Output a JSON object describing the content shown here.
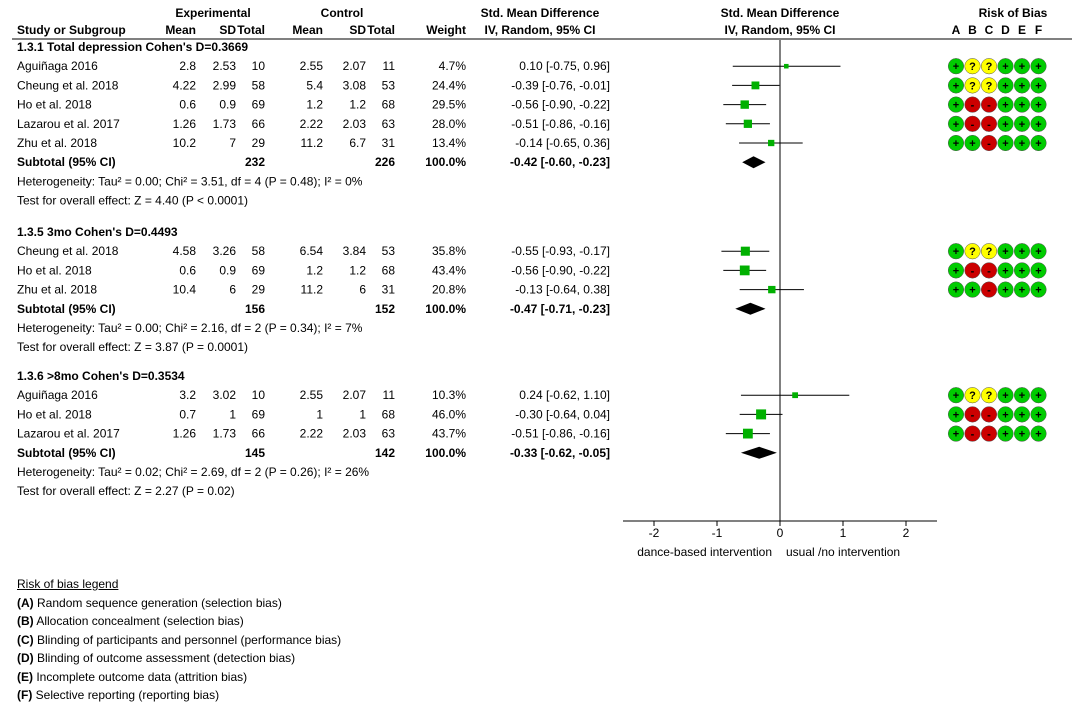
{
  "chart_data": {
    "type": "forest",
    "headers": {
      "study": "Study or Subgroup",
      "experimental": "Experimental",
      "control": "Control",
      "mean": "Mean",
      "sd": "SD",
      "total": "Total",
      "weight": "Weight",
      "smd": "Std. Mean Difference",
      "method": "IV, Random, 95% CI",
      "rob": "Risk of Bias",
      "rob_cols": [
        "A",
        "B",
        "C",
        "D",
        "E",
        "F"
      ]
    },
    "axis": {
      "min": -2,
      "max": 2,
      "ticks": [
        -2,
        -1,
        0,
        1,
        2
      ],
      "tick_labels": [
        "-2",
        "-1",
        "0",
        "1",
        "2"
      ],
      "left_label": "dance-based intervention",
      "right_label": "usual /no intervention"
    },
    "subgroups": [
      {
        "title": "1.3.1 Total depression Cohen's D=0.3669",
        "studies": [
          {
            "name": "Aguiñaga 2016",
            "e_mean": "2.8",
            "e_sd": "2.53",
            "e_total": "10",
            "c_mean": "2.55",
            "c_sd": "2.07",
            "c_total": "11",
            "weight": "4.7%",
            "ci_text": "0.10 [-0.75, 0.96]",
            "est": 0.1,
            "lo": -0.75,
            "hi": 0.96,
            "w": 4.7,
            "rob": [
              "+",
              "?",
              "?",
              "+",
              "+",
              "+"
            ]
          },
          {
            "name": "Cheung et al. 2018",
            "e_mean": "4.22",
            "e_sd": "2.99",
            "e_total": "58",
            "c_mean": "5.4",
            "c_sd": "3.08",
            "c_total": "53",
            "weight": "24.4%",
            "ci_text": "-0.39 [-0.76, -0.01]",
            "est": -0.39,
            "lo": -0.76,
            "hi": -0.01,
            "w": 24.4,
            "rob": [
              "+",
              "?",
              "?",
              "+",
              "+",
              "+"
            ]
          },
          {
            "name": "Ho et al. 2018",
            "e_mean": "0.6",
            "e_sd": "0.9",
            "e_total": "69",
            "c_mean": "1.2",
            "c_sd": "1.2",
            "c_total": "68",
            "weight": "29.5%",
            "ci_text": "-0.56 [-0.90, -0.22]",
            "est": -0.56,
            "lo": -0.9,
            "hi": -0.22,
            "w": 29.5,
            "rob": [
              "+",
              "-",
              "-",
              "+",
              "+",
              "+"
            ]
          },
          {
            "name": "Lazarou et al. 2017",
            "e_mean": "1.26",
            "e_sd": "1.73",
            "e_total": "66",
            "c_mean": "2.22",
            "c_sd": "2.03",
            "c_total": "63",
            "weight": "28.0%",
            "ci_text": "-0.51 [-0.86, -0.16]",
            "est": -0.51,
            "lo": -0.86,
            "hi": -0.16,
            "w": 28.0,
            "rob": [
              "+",
              "-",
              "-",
              "+",
              "+",
              "+"
            ]
          },
          {
            "name": "Zhu et al. 2018",
            "e_mean": "10.2",
            "e_sd": "7",
            "e_total": "29",
            "c_mean": "11.2",
            "c_sd": "6.7",
            "c_total": "31",
            "weight": "13.4%",
            "ci_text": "-0.14 [-0.65, 0.36]",
            "est": -0.14,
            "lo": -0.65,
            "hi": 0.36,
            "w": 13.4,
            "rob": [
              "+",
              "+",
              "-",
              "+",
              "+",
              "+"
            ]
          }
        ],
        "subtotal": {
          "label": "Subtotal (95% CI)",
          "e_total": "232",
          "c_total": "226",
          "weight": "100.0%",
          "ci_text": "-0.42 [-0.60, -0.23]",
          "est": -0.42,
          "lo": -0.6,
          "hi": -0.23
        },
        "heterogeneity": "Heterogeneity: Tau² = 0.00; Chi² = 3.51, df = 4 (P = 0.48); I² = 0%",
        "overall": "Test for overall effect: Z = 4.40 (P < 0.0001)"
      },
      {
        "title": "1.3.5 3mo Cohen's D=0.4493",
        "studies": [
          {
            "name": "Cheung et al. 2018",
            "e_mean": "4.58",
            "e_sd": "3.26",
            "e_total": "58",
            "c_mean": "6.54",
            "c_sd": "3.84",
            "c_total": "53",
            "weight": "35.8%",
            "ci_text": "-0.55 [-0.93, -0.17]",
            "est": -0.55,
            "lo": -0.93,
            "hi": -0.17,
            "w": 35.8,
            "rob": [
              "+",
              "?",
              "?",
              "+",
              "+",
              "+"
            ]
          },
          {
            "name": "Ho et al. 2018",
            "e_mean": "0.6",
            "e_sd": "0.9",
            "e_total": "69",
            "c_mean": "1.2",
            "c_sd": "1.2",
            "c_total": "68",
            "weight": "43.4%",
            "ci_text": "-0.56 [-0.90, -0.22]",
            "est": -0.56,
            "lo": -0.9,
            "hi": -0.22,
            "w": 43.4,
            "rob": [
              "+",
              "-",
              "-",
              "+",
              "+",
              "+"
            ]
          },
          {
            "name": "Zhu et al. 2018",
            "e_mean": "10.4",
            "e_sd": "6",
            "e_total": "29",
            "c_mean": "11.2",
            "c_sd": "6",
            "c_total": "31",
            "weight": "20.8%",
            "ci_text": "-0.13 [-0.64, 0.38]",
            "est": -0.13,
            "lo": -0.64,
            "hi": 0.38,
            "w": 20.8,
            "rob": [
              "+",
              "+",
              "-",
              "+",
              "+",
              "+"
            ]
          }
        ],
        "subtotal": {
          "label": "Subtotal (95% CI)",
          "e_total": "156",
          "c_total": "152",
          "weight": "100.0%",
          "ci_text": "-0.47 [-0.71, -0.23]",
          "est": -0.47,
          "lo": -0.71,
          "hi": -0.23
        },
        "heterogeneity": "Heterogeneity: Tau² = 0.00; Chi² = 2.16, df = 2 (P = 0.34); I² = 7%",
        "overall": "Test for overall effect: Z = 3.87 (P = 0.0001)"
      },
      {
        "title": "1.3.6 >8mo Cohen's D=0.3534",
        "studies": [
          {
            "name": "Aguiñaga 2016",
            "e_mean": "3.2",
            "e_sd": "3.02",
            "e_total": "10",
            "c_mean": "2.55",
            "c_sd": "2.07",
            "c_total": "11",
            "weight": "10.3%",
            "ci_text": "0.24 [-0.62, 1.10]",
            "est": 0.24,
            "lo": -0.62,
            "hi": 1.1,
            "w": 10.3,
            "rob": [
              "+",
              "?",
              "?",
              "+",
              "+",
              "+"
            ]
          },
          {
            "name": "Ho et al. 2018",
            "e_mean": "0.7",
            "e_sd": "1",
            "e_total": "69",
            "c_mean": "1",
            "c_sd": "1",
            "c_total": "68",
            "weight": "46.0%",
            "ci_text": "-0.30 [-0.64, 0.04]",
            "est": -0.3,
            "lo": -0.64,
            "hi": 0.04,
            "w": 46.0,
            "rob": [
              "+",
              "-",
              "-",
              "+",
              "+",
              "+"
            ]
          },
          {
            "name": "Lazarou et al. 2017",
            "e_mean": "1.26",
            "e_sd": "1.73",
            "e_total": "66",
            "c_mean": "2.22",
            "c_sd": "2.03",
            "c_total": "63",
            "weight": "43.7%",
            "ci_text": "-0.51 [-0.86, -0.16]",
            "est": -0.51,
            "lo": -0.86,
            "hi": -0.16,
            "w": 43.7,
            "rob": [
              "+",
              "-",
              "-",
              "+",
              "+",
              "+"
            ]
          }
        ],
        "subtotal": {
          "label": "Subtotal (95% CI)",
          "e_total": "145",
          "c_total": "142",
          "weight": "100.0%",
          "ci_text": "-0.33 [-0.62, -0.05]",
          "est": -0.33,
          "lo": -0.62,
          "hi": -0.05
        },
        "heterogeneity": "Heterogeneity: Tau² = 0.02; Chi² = 2.69, df = 2 (P = 0.26); I² = 26%",
        "overall": "Test for overall effect: Z = 2.27 (P = 0.02)"
      }
    ],
    "rob_colors": {
      "+": "#00CC00",
      "?": "#FFFF00",
      "-": "#CC0000"
    }
  },
  "legend": {
    "title": "Risk of bias legend",
    "items": [
      {
        "key": "(A)",
        "text": " Random sequence generation (selection bias)"
      },
      {
        "key": "(B)",
        "text": " Allocation concealment (selection bias)"
      },
      {
        "key": "(C)",
        "text": " Blinding of participants and personnel (performance bias)"
      },
      {
        "key": "(D)",
        "text": " Blinding of outcome assessment (detection bias)"
      },
      {
        "key": "(E)",
        "text": " Incomplete outcome data (attrition bias)"
      },
      {
        "key": "(F)",
        "text": " Selective reporting (reporting bias)"
      }
    ]
  }
}
